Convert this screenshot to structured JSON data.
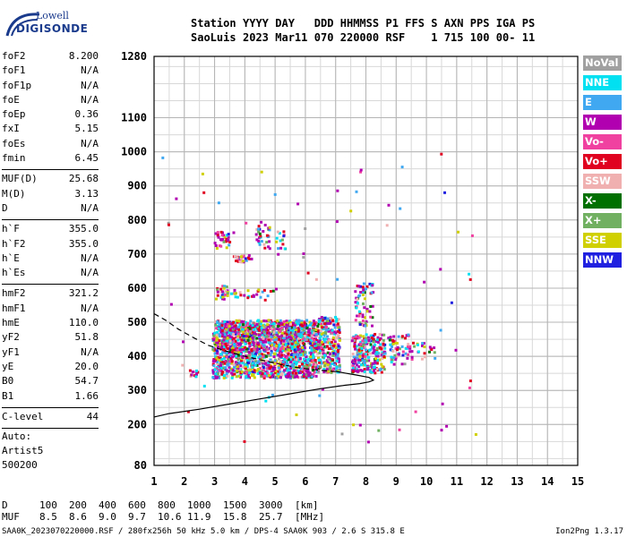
{
  "logo": {
    "top": "Lowell",
    "bottom": "DIGISONDE"
  },
  "header": {
    "labels": [
      "Station",
      "YYYY",
      "DAY",
      "DDD",
      "HHMMSS",
      "P1",
      "FFS",
      "S",
      "AXN",
      "PPS",
      "IGA",
      "PS"
    ],
    "values": [
      "SaoLuis",
      "2023",
      "Mar11",
      "070",
      "220000",
      "RSF",
      "",
      "1",
      "715",
      "100",
      "00-",
      "11"
    ]
  },
  "params": {
    "group1": [
      {
        "name": "foF2",
        "value": "8.200"
      },
      {
        "name": "foF1",
        "value": "N/A"
      },
      {
        "name": "foF1p",
        "value": "N/A"
      },
      {
        "name": "foE",
        "value": "N/A"
      },
      {
        "name": "foEp",
        "value": "0.36"
      },
      {
        "name": "fxI",
        "value": "5.15"
      },
      {
        "name": "foEs",
        "value": "N/A"
      },
      {
        "name": "fmin",
        "value": "6.45"
      }
    ],
    "group2": [
      {
        "name": "MUF(D)",
        "value": "25.68"
      },
      {
        "name": "M(D)",
        "value": "3.13"
      },
      {
        "name": "D",
        "value": "N/A"
      }
    ],
    "group3": [
      {
        "name": "h`F",
        "value": "355.0"
      },
      {
        "name": "h`F2",
        "value": "355.0"
      },
      {
        "name": "h`E",
        "value": "N/A"
      },
      {
        "name": "h`Es",
        "value": "N/A"
      }
    ],
    "group4": [
      {
        "name": "hmF2",
        "value": "321.2"
      },
      {
        "name": "hmF1",
        "value": "N/A"
      },
      {
        "name": "hmE",
        "value": "110.0"
      },
      {
        "name": "yF2",
        "value": "51.8"
      },
      {
        "name": "yF1",
        "value": "N/A"
      },
      {
        "name": "yE",
        "value": "20.0"
      },
      {
        "name": "B0",
        "value": "54.7"
      },
      {
        "name": "B1",
        "value": "1.66"
      }
    ],
    "group5": [
      {
        "name": "C-level",
        "value": "44"
      }
    ]
  },
  "auto": {
    "line1": "Auto:",
    "line2": "Artist5",
    "line3": "500200"
  },
  "legend": [
    {
      "label": "NoVal",
      "color": "#a0a0a0"
    },
    {
      "label": "NNE",
      "color": "#00e0f0"
    },
    {
      "label": "E",
      "color": "#40a8f0"
    },
    {
      "label": "W",
      "color": "#b000b0"
    },
    {
      "label": "Vo-",
      "color": "#f040a0"
    },
    {
      "label": "Vo+",
      "color": "#e00020"
    },
    {
      "label": "SSW",
      "color": "#f0b0b0"
    },
    {
      "label": "X-",
      "color": "#007000"
    },
    {
      "label": "X+",
      "color": "#70b060"
    },
    {
      "label": "SSE",
      "color": "#d0d000"
    },
    {
      "label": "NNW",
      "color": "#2020e0"
    }
  ],
  "muf_table": {
    "d_label": "D",
    "d_values": [
      "100",
      "200",
      "400",
      "600",
      "800",
      "1000",
      "1500",
      "3000"
    ],
    "d_unit": "[km]",
    "muf_label": "MUF",
    "muf_values": [
      "8.5",
      "8.6",
      "9.0",
      "9.7",
      "10.6",
      "11.9",
      "15.8",
      "25.7"
    ],
    "muf_unit": "[MHz]"
  },
  "footer": {
    "text": "SAA0K_2023070220000.RSF / 280fx256h 50 kHz 5.0 km / DPS-4 SAA0K 903 / 2.6 S 315.8 E",
    "version": "Ion2Png 1.3.17"
  },
  "chart_data": {
    "type": "scatter",
    "x_ticks": [
      1,
      2,
      3,
      4,
      5,
      6,
      7,
      8,
      9,
      10,
      11,
      12,
      13,
      14,
      15
    ],
    "y_ticks": [
      80,
      200,
      300,
      400,
      500,
      600,
      700,
      800,
      900,
      1000,
      1100,
      1280
    ],
    "xlim": [
      1,
      15
    ],
    "ylim": [
      80,
      1280
    ],
    "grid": true,
    "legend_position": "right",
    "clusters": [
      {
        "x0": 2.1,
        "x1": 2.4,
        "y0": 340,
        "y1": 365,
        "n": 12
      },
      {
        "x0": 2.9,
        "x1": 6.4,
        "y0": 340,
        "y1": 510,
        "n": 1500
      },
      {
        "x0": 3.2,
        "x1": 5.9,
        "y0": 420,
        "y1": 500,
        "n": 300
      },
      {
        "x0": 6.4,
        "x1": 7.1,
        "y0": 355,
        "y1": 520,
        "n": 260
      },
      {
        "x0": 7.5,
        "x1": 8.6,
        "y0": 355,
        "y1": 470,
        "n": 240
      },
      {
        "x0": 7.6,
        "x1": 8.2,
        "y0": 490,
        "y1": 620,
        "n": 60
      },
      {
        "x0": 8.7,
        "x1": 9.5,
        "y0": 380,
        "y1": 470,
        "n": 60
      },
      {
        "x0": 9.5,
        "x1": 10.4,
        "y0": 395,
        "y1": 445,
        "n": 20
      },
      {
        "x0": 2.9,
        "x1": 3.6,
        "y0": 720,
        "y1": 770,
        "n": 30
      },
      {
        "x0": 3.0,
        "x1": 3.4,
        "y0": 570,
        "y1": 610,
        "n": 25
      },
      {
        "x0": 3.6,
        "x1": 4.2,
        "y0": 680,
        "y1": 700,
        "n": 25
      },
      {
        "x0": 4.3,
        "x1": 4.8,
        "y0": 720,
        "y1": 790,
        "n": 30
      },
      {
        "x0": 4.9,
        "x1": 5.3,
        "y0": 700,
        "y1": 770,
        "n": 15
      },
      {
        "x0": 3.3,
        "x1": 4.9,
        "y0": 575,
        "y1": 600,
        "n": 30
      },
      {
        "x0": 1.0,
        "x1": 11.6,
        "y0": 150,
        "y1": 1000,
        "n": 80
      }
    ],
    "traces": {
      "profile_solid": [
        [
          1.0,
          222
        ],
        [
          1.5,
          232
        ],
        [
          2.5,
          245
        ],
        [
          3.5,
          260
        ],
        [
          4.5,
          275
        ],
        [
          5.5,
          290
        ],
        [
          6.5,
          305
        ],
        [
          7.3,
          315
        ],
        [
          7.8,
          320
        ],
        [
          8.1,
          325
        ],
        [
          8.25,
          330
        ],
        [
          8.1,
          338
        ],
        [
          7.7,
          345
        ],
        [
          7.3,
          351
        ],
        [
          7.0,
          356
        ]
      ],
      "profile_dashed": [
        [
          1.0,
          525
        ],
        [
          1.4,
          505
        ],
        [
          1.8,
          480
        ],
        [
          2.3,
          455
        ],
        [
          2.8,
          432
        ],
        [
          3.4,
          415
        ],
        [
          4.0,
          400
        ],
        [
          4.6,
          388
        ],
        [
          5.2,
          376
        ],
        [
          5.8,
          366
        ],
        [
          6.4,
          360
        ],
        [
          7.0,
          355
        ]
      ]
    }
  }
}
